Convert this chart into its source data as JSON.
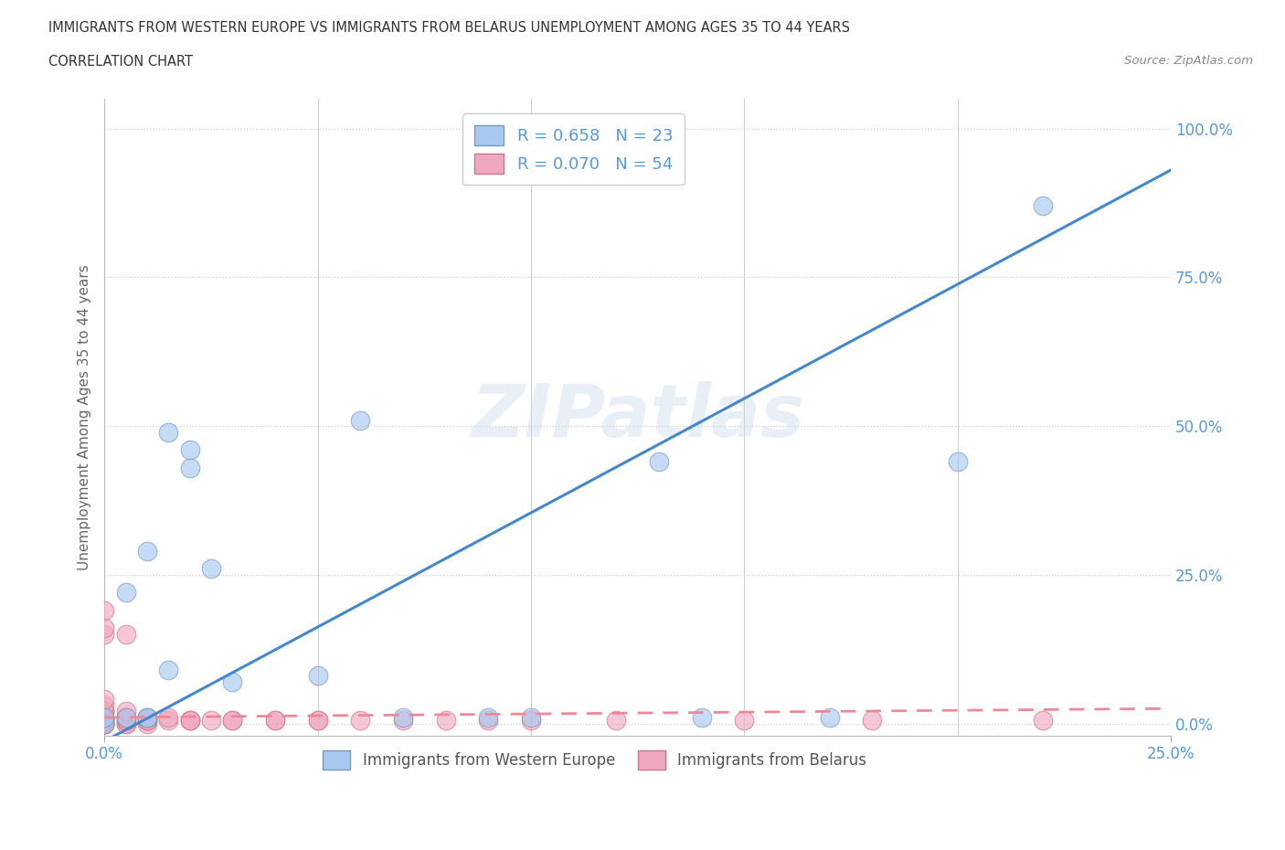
{
  "title_line1": "IMMIGRANTS FROM WESTERN EUROPE VS IMMIGRANTS FROM BELARUS UNEMPLOYMENT AMONG AGES 35 TO 44 YEARS",
  "title_line2": "CORRELATION CHART",
  "source_text": "Source: ZipAtlas.com",
  "ylabel": "Unemployment Among Ages 35 to 44 years",
  "xlim": [
    0.0,
    0.25
  ],
  "ylim": [
    -0.02,
    1.05
  ],
  "ytick_labels": [
    "0.0%",
    "25.0%",
    "50.0%",
    "75.0%",
    "100.0%"
  ],
  "ytick_vals": [
    0.0,
    0.25,
    0.5,
    0.75,
    1.0
  ],
  "xtick_labels": [
    "0.0%",
    "25.0%"
  ],
  "xtick_vals": [
    0.0,
    0.25
  ],
  "watermark": "ZIPatlas",
  "color_blue": "#a8c8f0",
  "color_pink": "#f0a8c0",
  "line_blue": "#4488cc",
  "line_pink": "#ee8899",
  "dot_blue_border": "#7799bb",
  "dot_pink_border": "#cc7788",
  "axis_color": "#5599dd",
  "grid_color": "#cccccc",
  "western_europe_x": [
    0.0,
    0.0,
    0.005,
    0.005,
    0.01,
    0.01,
    0.01,
    0.015,
    0.015,
    0.02,
    0.02,
    0.025,
    0.03,
    0.05,
    0.06,
    0.07,
    0.09,
    0.1,
    0.13,
    0.14,
    0.17,
    0.2,
    0.22
  ],
  "western_europe_y": [
    0.0,
    0.01,
    0.01,
    0.22,
    0.01,
    0.01,
    0.29,
    0.49,
    0.09,
    0.46,
    0.43,
    0.26,
    0.07,
    0.08,
    0.51,
    0.01,
    0.01,
    0.01,
    0.44,
    0.01,
    0.01,
    0.44,
    0.87
  ],
  "belarus_x": [
    0.0,
    0.0,
    0.0,
    0.0,
    0.0,
    0.0,
    0.0,
    0.0,
    0.0,
    0.0,
    0.0,
    0.0,
    0.0,
    0.0,
    0.0,
    0.0,
    0.0,
    0.0,
    0.0,
    0.0,
    0.005,
    0.005,
    0.005,
    0.005,
    0.005,
    0.005,
    0.005,
    0.005,
    0.01,
    0.01,
    0.01,
    0.01,
    0.01,
    0.015,
    0.015,
    0.02,
    0.02,
    0.02,
    0.025,
    0.03,
    0.03,
    0.04,
    0.04,
    0.05,
    0.05,
    0.06,
    0.07,
    0.08,
    0.09,
    0.1,
    0.12,
    0.15,
    0.18,
    0.22
  ],
  "belarus_y": [
    0.0,
    0.0,
    0.0,
    0.0,
    0.0,
    0.005,
    0.005,
    0.005,
    0.005,
    0.01,
    0.01,
    0.01,
    0.02,
    0.02,
    0.02,
    0.03,
    0.04,
    0.15,
    0.16,
    0.19,
    0.0,
    0.0,
    0.005,
    0.005,
    0.01,
    0.01,
    0.02,
    0.15,
    0.0,
    0.005,
    0.005,
    0.005,
    0.01,
    0.005,
    0.01,
    0.005,
    0.005,
    0.005,
    0.005,
    0.005,
    0.005,
    0.005,
    0.005,
    0.005,
    0.005,
    0.005,
    0.005,
    0.005,
    0.005,
    0.005,
    0.005,
    0.005,
    0.005,
    0.005
  ],
  "blue_line_x0": 0.0,
  "blue_line_y0": -0.03,
  "blue_line_x1": 0.25,
  "blue_line_y1": 0.93,
  "pink_line_x0": 0.0,
  "pink_line_y0": 0.01,
  "pink_line_x1": 0.25,
  "pink_line_y1": 0.025
}
